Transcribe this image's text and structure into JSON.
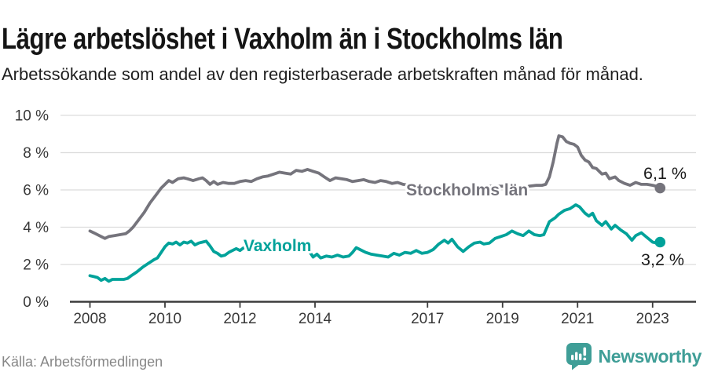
{
  "header": {
    "title": "Lägre arbetslöshet i Vaxholm än i Stockholms län",
    "subtitle": "Arbetssökande som andel av den registerbaserade arbetskraften månad för månad."
  },
  "footer": {
    "source": "Källa: Arbetsförmedlingen",
    "brand_name": "Newsworthy",
    "brand_icon": "newsworthy-speech-bubble-barchart-icon",
    "brand_color": "#3f9e97"
  },
  "colors": {
    "stockholm_line": "#75747c",
    "vaxholm_line": "#00a29a",
    "grid": "#dcdcdc",
    "axis": "#3c3c3c",
    "tick_text": "#383838",
    "end_value_text": "#1a1a1a"
  },
  "chart_data": {
    "type": "line",
    "unit": "%",
    "grid": true,
    "xlim": [
      2007.9,
      2023.7
    ],
    "ylim": [
      0,
      10
    ],
    "x_ticks": [
      2008,
      2010,
      2012,
      2014,
      2017,
      2019,
      2021,
      2023
    ],
    "y_ticks": [
      {
        "value": 0,
        "label": "0 %"
      },
      {
        "value": 2,
        "label": "2 %"
      },
      {
        "value": 4,
        "label": "4 %"
      },
      {
        "value": 6,
        "label": "6 %"
      },
      {
        "value": 8,
        "label": "8 %"
      },
      {
        "value": 10,
        "label": "10 %"
      }
    ],
    "series": [
      {
        "name": "Stockholms län",
        "color": "#75747c",
        "end_label": "6,1 %",
        "end_value": 6.1,
        "points": [
          [
            2008.0,
            3.8
          ],
          [
            2008.1,
            3.7
          ],
          [
            2008.25,
            3.55
          ],
          [
            2008.4,
            3.4
          ],
          [
            2008.5,
            3.5
          ],
          [
            2008.65,
            3.55
          ],
          [
            2008.8,
            3.6
          ],
          [
            2008.95,
            3.65
          ],
          [
            2009.05,
            3.8
          ],
          [
            2009.15,
            4.0
          ],
          [
            2009.3,
            4.4
          ],
          [
            2009.45,
            4.8
          ],
          [
            2009.6,
            5.3
          ],
          [
            2009.75,
            5.7
          ],
          [
            2009.9,
            6.1
          ],
          [
            2010.0,
            6.3
          ],
          [
            2010.1,
            6.5
          ],
          [
            2010.2,
            6.4
          ],
          [
            2010.35,
            6.6
          ],
          [
            2010.5,
            6.65
          ],
          [
            2010.6,
            6.6
          ],
          [
            2010.75,
            6.5
          ],
          [
            2010.9,
            6.6
          ],
          [
            2011.0,
            6.65
          ],
          [
            2011.1,
            6.5
          ],
          [
            2011.2,
            6.3
          ],
          [
            2011.3,
            6.45
          ],
          [
            2011.4,
            6.3
          ],
          [
            2011.55,
            6.4
          ],
          [
            2011.7,
            6.35
          ],
          [
            2011.85,
            6.35
          ],
          [
            2012.0,
            6.45
          ],
          [
            2012.15,
            6.5
          ],
          [
            2012.3,
            6.45
          ],
          [
            2012.45,
            6.6
          ],
          [
            2012.6,
            6.7
          ],
          [
            2012.75,
            6.75
          ],
          [
            2012.9,
            6.85
          ],
          [
            2013.05,
            6.95
          ],
          [
            2013.2,
            6.9
          ],
          [
            2013.35,
            6.85
          ],
          [
            2013.5,
            7.05
          ],
          [
            2013.65,
            7.0
          ],
          [
            2013.8,
            7.1
          ],
          [
            2013.95,
            7.0
          ],
          [
            2014.1,
            6.9
          ],
          [
            2014.25,
            6.7
          ],
          [
            2014.4,
            6.5
          ],
          [
            2014.55,
            6.65
          ],
          [
            2014.7,
            6.6
          ],
          [
            2014.85,
            6.55
          ],
          [
            2015.0,
            6.45
          ],
          [
            2015.15,
            6.5
          ],
          [
            2015.3,
            6.55
          ],
          [
            2015.45,
            6.45
          ],
          [
            2015.6,
            6.4
          ],
          [
            2015.75,
            6.5
          ],
          [
            2015.9,
            6.45
          ],
          [
            2016.05,
            6.35
          ],
          [
            2016.2,
            6.4
          ],
          [
            2016.35,
            6.3
          ],
          [
            2016.5,
            6.25
          ],
          [
            2016.75,
            6.2
          ],
          [
            2017.0,
            6.15
          ],
          [
            2017.3,
            6.1
          ],
          [
            2017.6,
            6.1
          ],
          [
            2017.9,
            6.1
          ],
          [
            2018.2,
            6.15
          ],
          [
            2018.5,
            6.2
          ],
          [
            2018.8,
            6.2
          ],
          [
            2019.1,
            6.2
          ],
          [
            2019.35,
            6.15
          ],
          [
            2019.55,
            6.0
          ],
          [
            2019.7,
            6.2
          ],
          [
            2019.9,
            6.25
          ],
          [
            2020.05,
            6.25
          ],
          [
            2020.15,
            6.3
          ],
          [
            2020.25,
            6.7
          ],
          [
            2020.35,
            7.5
          ],
          [
            2020.45,
            8.5
          ],
          [
            2020.5,
            8.9
          ],
          [
            2020.6,
            8.85
          ],
          [
            2020.7,
            8.6
          ],
          [
            2020.8,
            8.5
          ],
          [
            2020.9,
            8.45
          ],
          [
            2021.0,
            8.3
          ],
          [
            2021.1,
            7.85
          ],
          [
            2021.2,
            7.6
          ],
          [
            2021.3,
            7.5
          ],
          [
            2021.4,
            7.2
          ],
          [
            2021.5,
            7.15
          ],
          [
            2021.65,
            6.85
          ],
          [
            2021.75,
            6.9
          ],
          [
            2021.85,
            6.6
          ],
          [
            2022.0,
            6.7
          ],
          [
            2022.1,
            6.5
          ],
          [
            2022.25,
            6.35
          ],
          [
            2022.4,
            6.25
          ],
          [
            2022.55,
            6.4
          ],
          [
            2022.7,
            6.3
          ],
          [
            2022.85,
            6.3
          ],
          [
            2023.0,
            6.25
          ],
          [
            2023.1,
            6.2
          ],
          [
            2023.2,
            6.1
          ]
        ]
      },
      {
        "name": "Vaxholm",
        "color": "#00a29a",
        "end_label": "3,2 %",
        "end_value": 3.2,
        "points": [
          [
            2008.0,
            1.4
          ],
          [
            2008.1,
            1.35
          ],
          [
            2008.2,
            1.3
          ],
          [
            2008.3,
            1.15
          ],
          [
            2008.4,
            1.25
          ],
          [
            2008.5,
            1.1
          ],
          [
            2008.6,
            1.2
          ],
          [
            2008.75,
            1.2
          ],
          [
            2008.9,
            1.2
          ],
          [
            2009.0,
            1.25
          ],
          [
            2009.1,
            1.4
          ],
          [
            2009.25,
            1.6
          ],
          [
            2009.4,
            1.85
          ],
          [
            2009.55,
            2.05
          ],
          [
            2009.7,
            2.25
          ],
          [
            2009.8,
            2.35
          ],
          [
            2009.9,
            2.65
          ],
          [
            2010.0,
            2.95
          ],
          [
            2010.1,
            3.15
          ],
          [
            2010.2,
            3.1
          ],
          [
            2010.3,
            3.2
          ],
          [
            2010.4,
            3.05
          ],
          [
            2010.5,
            3.2
          ],
          [
            2010.6,
            3.15
          ],
          [
            2010.7,
            3.25
          ],
          [
            2010.8,
            3.05
          ],
          [
            2010.9,
            3.15
          ],
          [
            2011.0,
            3.2
          ],
          [
            2011.1,
            3.25
          ],
          [
            2011.2,
            3.0
          ],
          [
            2011.3,
            2.7
          ],
          [
            2011.4,
            2.6
          ],
          [
            2011.5,
            2.45
          ],
          [
            2011.6,
            2.5
          ],
          [
            2011.7,
            2.65
          ],
          [
            2011.8,
            2.75
          ],
          [
            2011.9,
            2.85
          ],
          [
            2012.0,
            2.75
          ],
          [
            2012.1,
            2.9
          ],
          [
            2012.25,
            2.95
          ],
          [
            2012.4,
            2.85
          ],
          [
            2012.55,
            3.0
          ],
          [
            2012.7,
            2.95
          ],
          [
            2012.85,
            3.05
          ],
          [
            2013.0,
            3.0
          ],
          [
            2013.15,
            3.1
          ],
          [
            2013.3,
            3.0
          ],
          [
            2013.45,
            3.05
          ],
          [
            2013.6,
            2.95
          ],
          [
            2013.75,
            2.85
          ],
          [
            2013.85,
            2.7
          ],
          [
            2013.95,
            2.4
          ],
          [
            2014.05,
            2.55
          ],
          [
            2014.15,
            2.35
          ],
          [
            2014.3,
            2.45
          ],
          [
            2014.45,
            2.4
          ],
          [
            2014.6,
            2.5
          ],
          [
            2014.75,
            2.4
          ],
          [
            2014.9,
            2.45
          ],
          [
            2015.0,
            2.65
          ],
          [
            2015.1,
            2.9
          ],
          [
            2015.2,
            2.8
          ],
          [
            2015.35,
            2.65
          ],
          [
            2015.5,
            2.55
          ],
          [
            2015.65,
            2.5
          ],
          [
            2015.8,
            2.45
          ],
          [
            2015.95,
            2.4
          ],
          [
            2016.1,
            2.6
          ],
          [
            2016.25,
            2.5
          ],
          [
            2016.4,
            2.65
          ],
          [
            2016.55,
            2.6
          ],
          [
            2016.7,
            2.75
          ],
          [
            2016.85,
            2.6
          ],
          [
            2017.0,
            2.65
          ],
          [
            2017.15,
            2.8
          ],
          [
            2017.3,
            3.1
          ],
          [
            2017.45,
            3.3
          ],
          [
            2017.55,
            3.15
          ],
          [
            2017.65,
            3.35
          ],
          [
            2017.8,
            2.95
          ],
          [
            2017.95,
            2.7
          ],
          [
            2018.1,
            2.95
          ],
          [
            2018.25,
            3.15
          ],
          [
            2018.4,
            3.2
          ],
          [
            2018.5,
            3.1
          ],
          [
            2018.65,
            3.15
          ],
          [
            2018.8,
            3.4
          ],
          [
            2018.95,
            3.5
          ],
          [
            2019.1,
            3.6
          ],
          [
            2019.25,
            3.8
          ],
          [
            2019.4,
            3.65
          ],
          [
            2019.55,
            3.55
          ],
          [
            2019.7,
            3.8
          ],
          [
            2019.85,
            3.6
          ],
          [
            2020.0,
            3.55
          ],
          [
            2020.1,
            3.6
          ],
          [
            2020.25,
            4.3
          ],
          [
            2020.4,
            4.5
          ],
          [
            2020.5,
            4.7
          ],
          [
            2020.65,
            4.9
          ],
          [
            2020.8,
            5.0
          ],
          [
            2020.95,
            5.2
          ],
          [
            2021.05,
            5.1
          ],
          [
            2021.2,
            4.75
          ],
          [
            2021.3,
            4.6
          ],
          [
            2021.4,
            4.75
          ],
          [
            2021.5,
            4.35
          ],
          [
            2021.65,
            4.1
          ],
          [
            2021.75,
            4.3
          ],
          [
            2021.9,
            3.9
          ],
          [
            2022.0,
            4.1
          ],
          [
            2022.15,
            3.85
          ],
          [
            2022.3,
            3.65
          ],
          [
            2022.45,
            3.3
          ],
          [
            2022.55,
            3.55
          ],
          [
            2022.7,
            3.7
          ],
          [
            2022.85,
            3.45
          ],
          [
            2023.0,
            3.2
          ],
          [
            2023.1,
            3.15
          ],
          [
            2023.2,
            3.2
          ]
        ]
      }
    ]
  }
}
